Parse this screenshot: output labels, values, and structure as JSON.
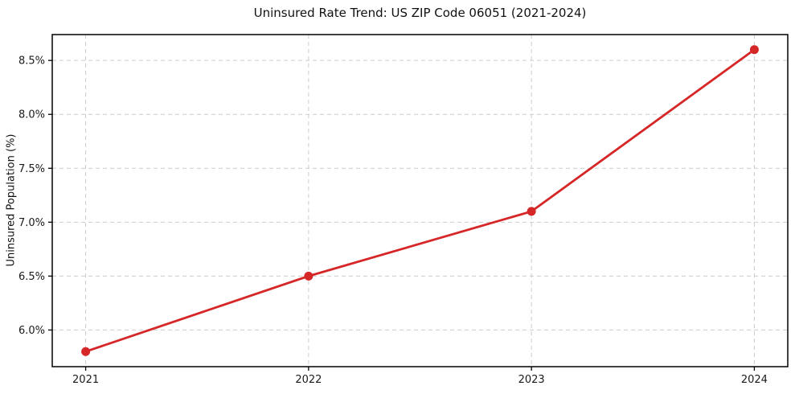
{
  "chart_data": {
    "type": "line",
    "title": "Uninsured Rate Trend: US ZIP Code 06051 (2021-2024)",
    "xlabel": "",
    "ylabel": "Uninsured Population (%)",
    "x": [
      2021,
      2022,
      2023,
      2024
    ],
    "x_tick_labels": [
      "2021",
      "2022",
      "2023",
      "2024"
    ],
    "series": [
      {
        "name": "Uninsured Rate",
        "values": [
          5.8,
          6.5,
          7.1,
          8.6
        ]
      }
    ],
    "y_ticks": [
      6.0,
      6.5,
      7.0,
      7.5,
      8.0,
      8.5
    ],
    "y_tick_labels": [
      "6.0%",
      "6.5%",
      "7.0%",
      "7.5%",
      "8.0%",
      "8.5%"
    ],
    "xlim": [
      2020.85,
      2024.15
    ],
    "ylim": [
      5.66,
      8.74
    ],
    "grid": true,
    "grid_style": "dashed",
    "legend_position": "none",
    "colors": {
      "line": "#d62728",
      "marker": "#d62728",
      "grid": "#cccccc",
      "spine": "#000000",
      "text": "#1a1a1a",
      "background": "#ffffff"
    }
  }
}
